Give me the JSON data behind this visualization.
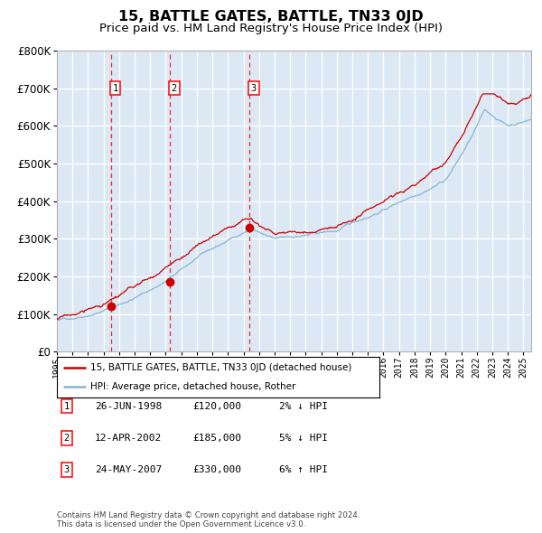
{
  "title": "15, BATTLE GATES, BATTLE, TN33 0JD",
  "subtitle": "Price paid vs. HM Land Registry's House Price Index (HPI)",
  "title_fontsize": 11.5,
  "subtitle_fontsize": 9.5,
  "bg_color": "#dce9f5",
  "grid_color": "#ffffff",
  "hpi_color": "#8ab4d4",
  "price_color": "#cc0000",
  "sale_marker_color": "#cc0000",
  "sale_dates": [
    1998.49,
    2002.28,
    2007.39
  ],
  "sale_prices": [
    120000,
    185000,
    330000
  ],
  "sale_labels": [
    "1",
    "2",
    "3"
  ],
  "sale_info": [
    {
      "num": "1",
      "date": "26-JUN-1998",
      "price": "£120,000",
      "hpi": "2% ↓ HPI"
    },
    {
      "num": "2",
      "date": "12-APR-2002",
      "price": "£185,000",
      "hpi": "5% ↓ HPI"
    },
    {
      "num": "3",
      "date": "24-MAY-2007",
      "price": "£330,000",
      "hpi": "6% ↑ HPI"
    }
  ],
  "legend_label_price": "15, BATTLE GATES, BATTLE, TN33 0JD (detached house)",
  "legend_label_hpi": "HPI: Average price, detached house, Rother",
  "footer": "Contains HM Land Registry data © Crown copyright and database right 2024.\nThis data is licensed under the Open Government Licence v3.0.",
  "ylim": [
    0,
    800000
  ],
  "xmin": 1995.0,
  "xmax": 2025.5,
  "yticks": [
    0,
    100000,
    200000,
    300000,
    400000,
    500000,
    600000,
    700000,
    800000
  ]
}
